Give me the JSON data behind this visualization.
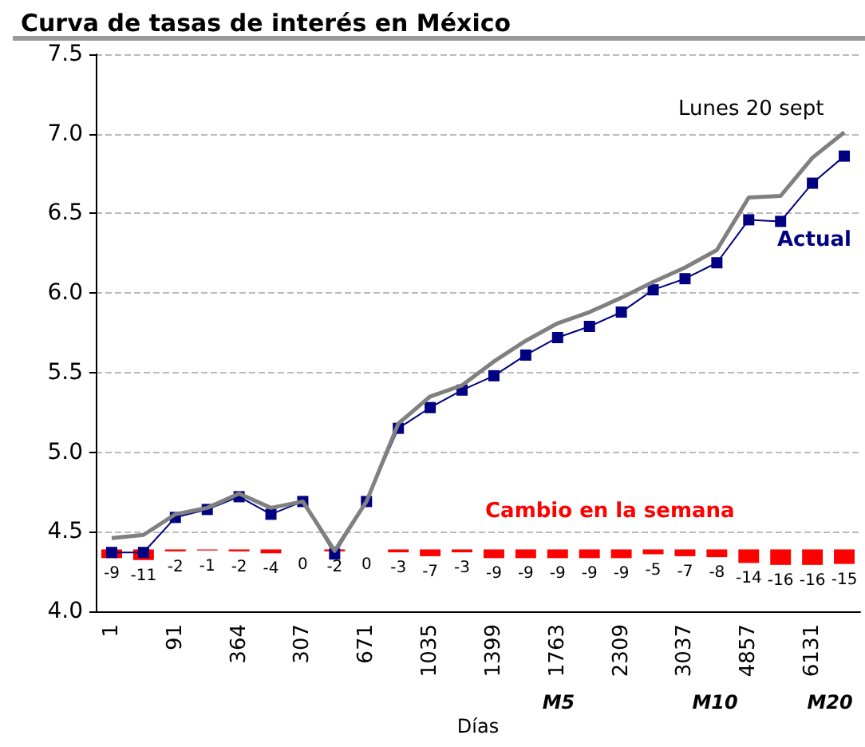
{
  "chart_data": {
    "type": "line",
    "title": "Curva de tasas de interés en México",
    "xlabel": "Días",
    "categories": [
      "1",
      null,
      "91",
      null,
      "364",
      null,
      "307",
      null,
      "671",
      null,
      "1035",
      null,
      "1399",
      null,
      "1763",
      null,
      "2309",
      null,
      "3037",
      null,
      "4857",
      null,
      "6131",
      null
    ],
    "series": [
      {
        "name": "Lunes 20 sept",
        "color": "#808080",
        "marker": "none",
        "values": [
          4.46,
          4.48,
          4.61,
          4.65,
          4.74,
          4.65,
          4.69,
          4.38,
          4.69,
          5.18,
          5.35,
          5.42,
          5.57,
          5.7,
          5.81,
          5.88,
          5.97,
          6.07,
          6.16,
          6.27,
          6.6,
          6.61,
          6.85,
          7.01
        ]
      },
      {
        "name": "Actual",
        "color": "#000080",
        "marker": "square",
        "values": [
          4.37,
          4.37,
          4.59,
          4.64,
          4.72,
          4.61,
          4.69,
          4.36,
          4.69,
          5.15,
          5.28,
          5.39,
          5.48,
          5.61,
          5.72,
          5.79,
          5.88,
          6.02,
          6.09,
          6.19,
          6.46,
          6.45,
          6.69,
          6.86
        ]
      },
      {
        "name": "Cambio en la semana",
        "type": "bar",
        "axis": "y2",
        "color": "#ff0000",
        "values": [
          -9,
          -11,
          -2,
          -1,
          -2,
          -4,
          0,
          -2,
          0,
          -3,
          -7,
          -3,
          -9,
          -9,
          -9,
          -9,
          -9,
          -5,
          -7,
          -8,
          -14,
          -16,
          -16,
          -15
        ],
        "value_labels": [
          "-9",
          "-11",
          "-2",
          "-1",
          "-2",
          "-4",
          "0",
          "-2",
          "0",
          "-3",
          "-7",
          "-3",
          "-9",
          "-9",
          "-9",
          "-9",
          "-9",
          "-5",
          "-7",
          "-8",
          "-14",
          "-16",
          "-16",
          "-15"
        ]
      }
    ],
    "ylim": [
      4,
      7.5
    ],
    "yticks": [
      {
        "value": 4,
        "label": "4.0"
      },
      {
        "value": 4.5,
        "label": "4.5"
      },
      {
        "value": 5,
        "label": "5.0"
      },
      {
        "value": 5.5,
        "label": "5.5"
      },
      {
        "value": 6,
        "label": "6.0"
      },
      {
        "value": 6.5,
        "label": "6.5"
      },
      {
        "value": 7,
        "label": "7.0"
      },
      {
        "value": 7.5,
        "label": "7.5"
      }
    ],
    "tick_labels": "xy",
    "grid": "y",
    "legend": false,
    "annotations": [
      "M5",
      "M10",
      "M20"
    ]
  }
}
